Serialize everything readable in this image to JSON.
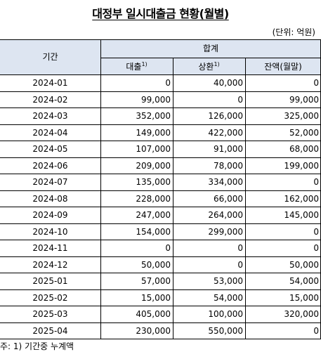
{
  "title": "대정부 일시대출금 현황(월별)",
  "unit_label": "(단위: 억원)",
  "header": {
    "period": "기간",
    "group": "합계",
    "loan": "대출",
    "loan_sup": "1)",
    "repay": "상환",
    "repay_sup": "1)",
    "balance": "잔액(월말)"
  },
  "rows": [
    {
      "period": "2024-01",
      "loan": "0",
      "repay": "40,000",
      "balance": "0"
    },
    {
      "period": "2024-02",
      "loan": "99,000",
      "repay": "0",
      "balance": "99,000"
    },
    {
      "period": "2024-03",
      "loan": "352,000",
      "repay": "126,000",
      "balance": "325,000"
    },
    {
      "period": "2024-04",
      "loan": "149,000",
      "repay": "422,000",
      "balance": "52,000"
    },
    {
      "period": "2024-05",
      "loan": "107,000",
      "repay": "91,000",
      "balance": "68,000"
    },
    {
      "period": "2024-06",
      "loan": "209,000",
      "repay": "78,000",
      "balance": "199,000"
    },
    {
      "period": "2024-07",
      "loan": "135,000",
      "repay": "334,000",
      "balance": "0"
    },
    {
      "period": "2024-08",
      "loan": "228,000",
      "repay": "66,000",
      "balance": "162,000"
    },
    {
      "period": "2024-09",
      "loan": "247,000",
      "repay": "264,000",
      "balance": "145,000"
    },
    {
      "period": "2024-10",
      "loan": "154,000",
      "repay": "299,000",
      "balance": "0"
    },
    {
      "period": "2024-11",
      "loan": "0",
      "repay": "0",
      "balance": "0"
    },
    {
      "period": "2024-12",
      "loan": "50,000",
      "repay": "0",
      "balance": "50,000"
    },
    {
      "period": "2025-01",
      "loan": "57,000",
      "repay": "53,000",
      "balance": "54,000"
    },
    {
      "period": "2025-02",
      "loan": "15,000",
      "repay": "54,000",
      "balance": "15,000"
    },
    {
      "period": "2025-03",
      "loan": "405,000",
      "repay": "100,000",
      "balance": "320,000"
    },
    {
      "period": "2025-04",
      "loan": "230,000",
      "repay": "550,000",
      "balance": "0"
    }
  ],
  "footnote": "주: 1) 기간중 누계액"
}
